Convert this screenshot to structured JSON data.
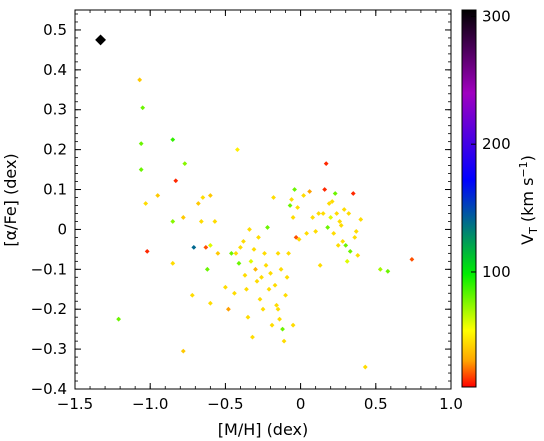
{
  "chart_data": {
    "type": "scatter",
    "xlabel": "[M/H] (dex)",
    "ylabel": "[α/Fe] (dex)",
    "xlim": [
      -1.5,
      1.0
    ],
    "ylim": [
      -0.4,
      0.55
    ],
    "x_ticks": [
      -1.5,
      -1.0,
      -0.5,
      0,
      0.5,
      1.0
    ],
    "x_tick_labels": [
      "−1.5",
      "−1.0",
      "−0.5",
      "0",
      "0.5",
      "1.0"
    ],
    "y_ticks": [
      -0.4,
      -0.3,
      -0.2,
      -0.1,
      0,
      0.1,
      0.2,
      0.3,
      0.4,
      0.5
    ],
    "y_tick_labels": [
      "−0.4",
      "−0.3",
      "−0.2",
      "−0.1",
      "0",
      "0.1",
      "0.2",
      "0.3",
      "0.4",
      "0.5"
    ],
    "colorbar": {
      "label": "V_T (km s^-1)",
      "label_main": "V",
      "label_sub": "T",
      "label_rest": " (km s",
      "label_sup": "−1",
      "label_close": ")",
      "range": [
        10,
        305
      ],
      "ticks": [
        100,
        200,
        300
      ],
      "tick_labels": [
        "100",
        "200",
        "300"
      ],
      "colormap": "gnuplot-like: red → yellow → green → blue → purple → black"
    },
    "grid": false,
    "legend": "none",
    "points": [
      {
        "x": -1.33,
        "y": 0.475,
        "v": 305,
        "marker": "diamond-large"
      },
      {
        "x": -1.07,
        "y": 0.375,
        "v": 40
      },
      {
        "x": -1.05,
        "y": 0.305,
        "v": 80
      },
      {
        "x": -1.06,
        "y": 0.215,
        "v": 80
      },
      {
        "x": -1.06,
        "y": 0.15,
        "v": 80
      },
      {
        "x": -1.03,
        "y": 0.065,
        "v": 45
      },
      {
        "x": -1.02,
        "y": -0.055,
        "v": 15
      },
      {
        "x": -0.95,
        "y": 0.085,
        "v": 40
      },
      {
        "x": -0.85,
        "y": 0.225,
        "v": 90
      },
      {
        "x": -0.85,
        "y": 0.02,
        "v": 75
      },
      {
        "x": -0.85,
        "y": -0.085,
        "v": 45
      },
      {
        "x": -0.83,
        "y": 0.122,
        "v": 15
      },
      {
        "x": -0.77,
        "y": 0.165,
        "v": 75
      },
      {
        "x": -0.78,
        "y": 0.03,
        "v": 40
      },
      {
        "x": -0.78,
        "y": -0.305,
        "v": 40
      },
      {
        "x": -0.72,
        "y": -0.165,
        "v": 45
      },
      {
        "x": -0.71,
        "y": -0.045,
        "v": 140
      },
      {
        "x": -0.68,
        "y": 0.065,
        "v": 40
      },
      {
        "x": -0.66,
        "y": 0.02,
        "v": 45
      },
      {
        "x": -0.65,
        "y": 0.08,
        "v": 45
      },
      {
        "x": -0.63,
        "y": -0.045,
        "v": 20
      },
      {
        "x": -0.62,
        "y": -0.1,
        "v": 80
      },
      {
        "x": -0.6,
        "y": 0.085,
        "v": 40
      },
      {
        "x": -0.6,
        "y": -0.04,
        "v": 60
      },
      {
        "x": -0.6,
        "y": -0.185,
        "v": 45
      },
      {
        "x": -0.57,
        "y": 0.02,
        "v": 45
      },
      {
        "x": -0.55,
        "y": -0.06,
        "v": 40
      },
      {
        "x": -0.5,
        "y": -0.145,
        "v": 45
      },
      {
        "x": -0.48,
        "y": -0.2,
        "v": 30
      },
      {
        "x": -0.46,
        "y": -0.06,
        "v": 80
      },
      {
        "x": -0.44,
        "y": -0.16,
        "v": 45
      },
      {
        "x": -0.43,
        "y": -0.06,
        "v": 45
      },
      {
        "x": -0.42,
        "y": 0.2,
        "v": 50
      },
      {
        "x": -0.41,
        "y": -0.085,
        "v": 80
      },
      {
        "x": -0.4,
        "y": -0.045,
        "v": 45
      },
      {
        "x": -0.38,
        "y": -0.03,
        "v": 45
      },
      {
        "x": -0.37,
        "y": -0.115,
        "v": 45
      },
      {
        "x": -0.36,
        "y": -0.15,
        "v": 45
      },
      {
        "x": -0.35,
        "y": -0.22,
        "v": 45
      },
      {
        "x": -0.34,
        "y": 0.0,
        "v": 45
      },
      {
        "x": -0.33,
        "y": -0.08,
        "v": 60
      },
      {
        "x": -0.32,
        "y": -0.27,
        "v": 45
      },
      {
        "x": -0.31,
        "y": -0.05,
        "v": 45
      },
      {
        "x": -0.3,
        "y": -0.1,
        "v": 35
      },
      {
        "x": -0.29,
        "y": -0.13,
        "v": 45
      },
      {
        "x": -0.28,
        "y": -0.02,
        "v": 45
      },
      {
        "x": -0.27,
        "y": -0.175,
        "v": 45
      },
      {
        "x": -0.26,
        "y": -0.12,
        "v": 45
      },
      {
        "x": -0.25,
        "y": -0.2,
        "v": 45
      },
      {
        "x": -0.24,
        "y": -0.06,
        "v": 45
      },
      {
        "x": -0.23,
        "y": -0.09,
        "v": 45
      },
      {
        "x": -0.22,
        "y": 0.005,
        "v": 80
      },
      {
        "x": -0.21,
        "y": -0.15,
        "v": 45
      },
      {
        "x": -0.2,
        "y": -0.11,
        "v": 45
      },
      {
        "x": -0.19,
        "y": -0.24,
        "v": 45
      },
      {
        "x": -0.18,
        "y": 0.08,
        "v": 45
      },
      {
        "x": -0.17,
        "y": -0.14,
        "v": 45
      },
      {
        "x": -0.16,
        "y": -0.19,
        "v": 45
      },
      {
        "x": -0.15,
        "y": -0.06,
        "v": 45
      },
      {
        "x": -0.15,
        "y": -0.2,
        "v": 45
      },
      {
        "x": -0.14,
        "y": -0.225,
        "v": 45
      },
      {
        "x": -0.13,
        "y": -0.1,
        "v": 45
      },
      {
        "x": -0.12,
        "y": -0.25,
        "v": 80
      },
      {
        "x": -0.11,
        "y": -0.28,
        "v": 45
      },
      {
        "x": -0.1,
        "y": -0.165,
        "v": 45
      },
      {
        "x": -0.09,
        "y": -0.12,
        "v": 45
      },
      {
        "x": -0.08,
        "y": -0.06,
        "v": 45
      },
      {
        "x": -0.07,
        "y": 0.06,
        "v": 80
      },
      {
        "x": -0.06,
        "y": 0.075,
        "v": 45
      },
      {
        "x": -0.05,
        "y": 0.03,
        "v": 45
      },
      {
        "x": -0.05,
        "y": -0.24,
        "v": 45
      },
      {
        "x": -0.04,
        "y": 0.1,
        "v": 80
      },
      {
        "x": -0.03,
        "y": -0.02,
        "v": 20
      },
      {
        "x": -0.02,
        "y": 0.055,
        "v": 45
      },
      {
        "x": -0.01,
        "y": -0.025,
        "v": 45
      },
      {
        "x": 0.02,
        "y": 0.085,
        "v": 45
      },
      {
        "x": 0.04,
        "y": -0.01,
        "v": 45
      },
      {
        "x": 0.06,
        "y": 0.095,
        "v": 30
      },
      {
        "x": 0.08,
        "y": 0.03,
        "v": 45
      },
      {
        "x": 0.1,
        "y": -0.005,
        "v": 45
      },
      {
        "x": 0.12,
        "y": 0.04,
        "v": 45
      },
      {
        "x": 0.13,
        "y": -0.09,
        "v": 45
      },
      {
        "x": 0.15,
        "y": 0.04,
        "v": 45
      },
      {
        "x": 0.16,
        "y": 0.1,
        "v": 15
      },
      {
        "x": 0.17,
        "y": 0.165,
        "v": 15
      },
      {
        "x": 0.18,
        "y": 0.005,
        "v": 80
      },
      {
        "x": 0.19,
        "y": 0.065,
        "v": 45
      },
      {
        "x": 0.2,
        "y": 0.03,
        "v": 60
      },
      {
        "x": 0.21,
        "y": 0.07,
        "v": 45
      },
      {
        "x": 0.22,
        "y": -0.01,
        "v": 45
      },
      {
        "x": 0.23,
        "y": 0.09,
        "v": 80
      },
      {
        "x": 0.24,
        "y": 0.04,
        "v": 45
      },
      {
        "x": 0.25,
        "y": -0.04,
        "v": 45
      },
      {
        "x": 0.26,
        "y": 0.02,
        "v": 45
      },
      {
        "x": 0.27,
        "y": 0.01,
        "v": 45
      },
      {
        "x": 0.28,
        "y": -0.03,
        "v": 45
      },
      {
        "x": 0.29,
        "y": 0.05,
        "v": 45
      },
      {
        "x": 0.3,
        "y": -0.04,
        "v": 80
      },
      {
        "x": 0.31,
        "y": -0.08,
        "v": 60
      },
      {
        "x": 0.32,
        "y": 0.04,
        "v": 45
      },
      {
        "x": 0.33,
        "y": -0.055,
        "v": 80
      },
      {
        "x": 0.35,
        "y": 0.09,
        "v": 15
      },
      {
        "x": 0.36,
        "y": -0.02,
        "v": 45
      },
      {
        "x": 0.37,
        "y": -0.005,
        "v": 45
      },
      {
        "x": 0.38,
        "y": -0.065,
        "v": 45
      },
      {
        "x": 0.4,
        "y": 0.025,
        "v": 45
      },
      {
        "x": 0.43,
        "y": -0.345,
        "v": 45
      },
      {
        "x": 0.53,
        "y": -0.1,
        "v": 70
      },
      {
        "x": 0.58,
        "y": -0.105,
        "v": 80
      },
      {
        "x": 0.74,
        "y": -0.075,
        "v": 20
      },
      {
        "x": -1.21,
        "y": -0.225,
        "v": 80
      }
    ]
  }
}
